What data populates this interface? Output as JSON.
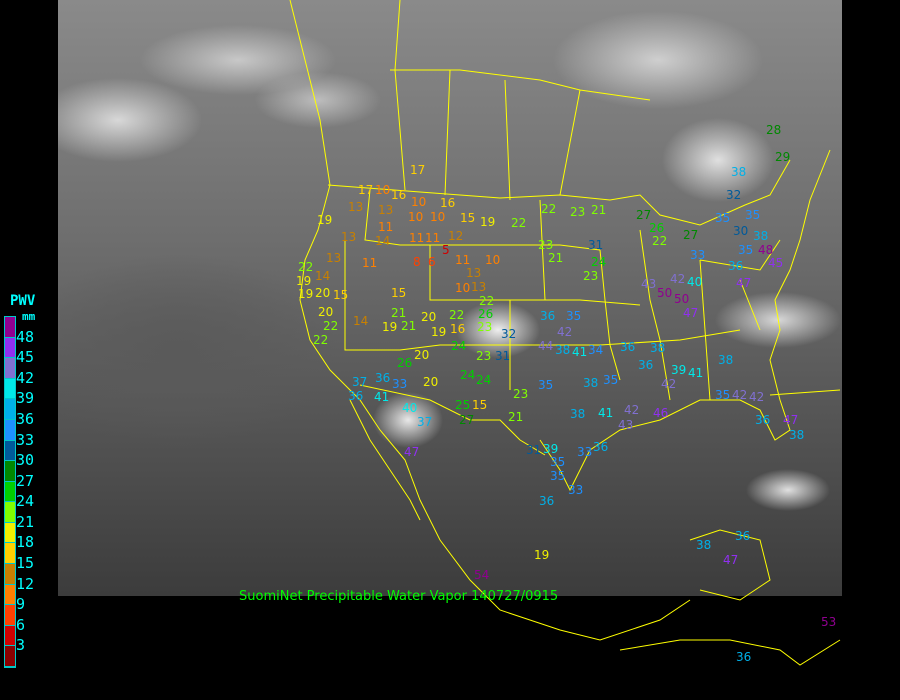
{
  "caption": "SuomiNet Precipitable Water Vapor 140727/0915",
  "legend": {
    "title": "PWV",
    "unit": "mm",
    "ticks": [
      "48",
      "45",
      "42",
      "39",
      "36",
      "33",
      "30",
      "27",
      "24",
      "21",
      "18",
      "15",
      "12",
      "9",
      "6",
      "3"
    ],
    "bins": [
      {
        "min": 0,
        "color": "#8b0000"
      },
      {
        "min": 3,
        "color": "#d00000"
      },
      {
        "min": 6,
        "color": "#ff4000"
      },
      {
        "min": 9,
        "color": "#ff8000"
      },
      {
        "min": 12,
        "color": "#c88000"
      },
      {
        "min": 15,
        "color": "#ffd000"
      },
      {
        "min": 18,
        "color": "#f0f000"
      },
      {
        "min": 21,
        "color": "#80ff00"
      },
      {
        "min": 24,
        "color": "#00d000"
      },
      {
        "min": 27,
        "color": "#008800"
      },
      {
        "min": 30,
        "color": "#005a9a"
      },
      {
        "min": 33,
        "color": "#1e90ff"
      },
      {
        "min": 36,
        "color": "#00b0e8"
      },
      {
        "min": 39,
        "color": "#00e8e8"
      },
      {
        "min": 42,
        "color": "#8070d0"
      },
      {
        "min": 45,
        "color": "#9030f0"
      },
      {
        "min": 48,
        "color": "#900090"
      }
    ]
  },
  "border_color": "#ffff00",
  "stations": [
    "17",
    "16",
    "15",
    "19",
    "22",
    "10",
    "10",
    "10",
    "19",
    "13",
    "17",
    "10",
    "16",
    "13",
    "11",
    "11",
    "11",
    "12",
    "5",
    "6",
    "8",
    "11",
    "10",
    "13",
    "10",
    "13",
    "13",
    "11",
    "13",
    "14",
    "22",
    "14",
    "19",
    "20",
    "15",
    "19",
    "19",
    "21",
    "20",
    "22",
    "16",
    "19",
    "21",
    "14",
    "15",
    "24",
    "26",
    "22",
    "23",
    "22",
    "20",
    "22",
    "20",
    "26",
    "24",
    "24",
    "23",
    "23",
    "20",
    "33",
    "37",
    "36",
    "41",
    "36",
    "40",
    "37",
    "25",
    "15",
    "27",
    "21",
    "32",
    "31",
    "36",
    "42",
    "38",
    "44",
    "22",
    "23",
    "23",
    "21",
    "23",
    "24",
    "31",
    "21",
    "35",
    "34",
    "36",
    "38",
    "35",
    "41",
    "35",
    "38",
    "41",
    "42",
    "42",
    "43",
    "46",
    "31",
    "39",
    "35",
    "35",
    "33",
    "36",
    "33",
    "36",
    "19",
    "54",
    "47",
    "47",
    "47",
    "50",
    "50",
    "43",
    "36",
    "48",
    "45",
    "42",
    "40",
    "33",
    "35",
    "38",
    "38",
    "32",
    "35",
    "30",
    "35",
    "27",
    "26",
    "22",
    "27",
    "36",
    "38",
    "39",
    "41",
    "38",
    "35",
    "42",
    "36",
    "42",
    "47",
    "38",
    "38",
    "36",
    "47",
    "36",
    "53",
    "28",
    "29"
  ]
}
